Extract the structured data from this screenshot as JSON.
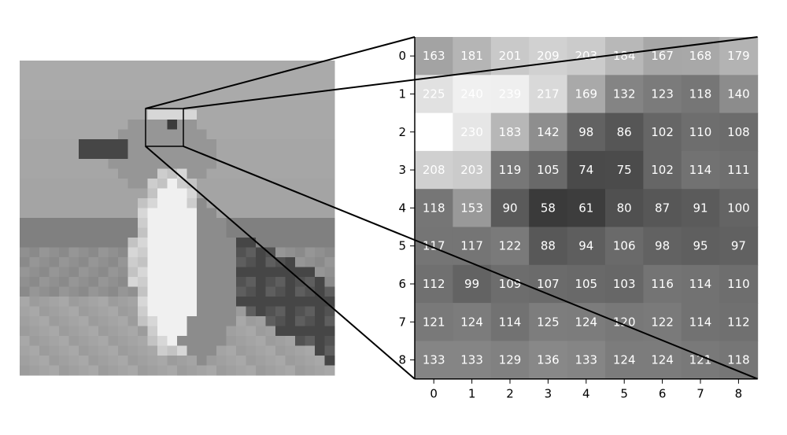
{
  "source_image": {
    "subject": "seagull",
    "grid_size": 32,
    "zoom_box": {
      "row": 8,
      "col": 20,
      "size": 9
    }
  },
  "matrix": {
    "row_labels": [
      "0",
      "1",
      "2",
      "3",
      "4",
      "5",
      "6",
      "7",
      "8"
    ],
    "col_labels": [
      "0",
      "1",
      "2",
      "3",
      "4",
      "5",
      "6",
      "7",
      "8"
    ],
    "values": [
      [
        163,
        181,
        201,
        209,
        203,
        184,
        167,
        168,
        179
      ],
      [
        225,
        240,
        239,
        217,
        169,
        132,
        123,
        118,
        140
      ],
      [
        255,
        230,
        183,
        142,
        98,
        86,
        102,
        110,
        108
      ],
      [
        208,
        203,
        119,
        105,
        74,
        75,
        102,
        114,
        111
      ],
      [
        118,
        153,
        90,
        58,
        61,
        80,
        87,
        91,
        100
      ],
      [
        117,
        117,
        122,
        88,
        94,
        106,
        98,
        95,
        97
      ],
      [
        112,
        99,
        109,
        107,
        105,
        103,
        116,
        114,
        110
      ],
      [
        121,
        124,
        114,
        125,
        124,
        120,
        122,
        114,
        112
      ],
      [
        133,
        133,
        129,
        136,
        133,
        124,
        124,
        121,
        118
      ]
    ],
    "hidden_value_cells": [
      [
        2,
        0
      ]
    ]
  },
  "colors": {
    "text": "#ffffff",
    "lines": "#000000"
  }
}
